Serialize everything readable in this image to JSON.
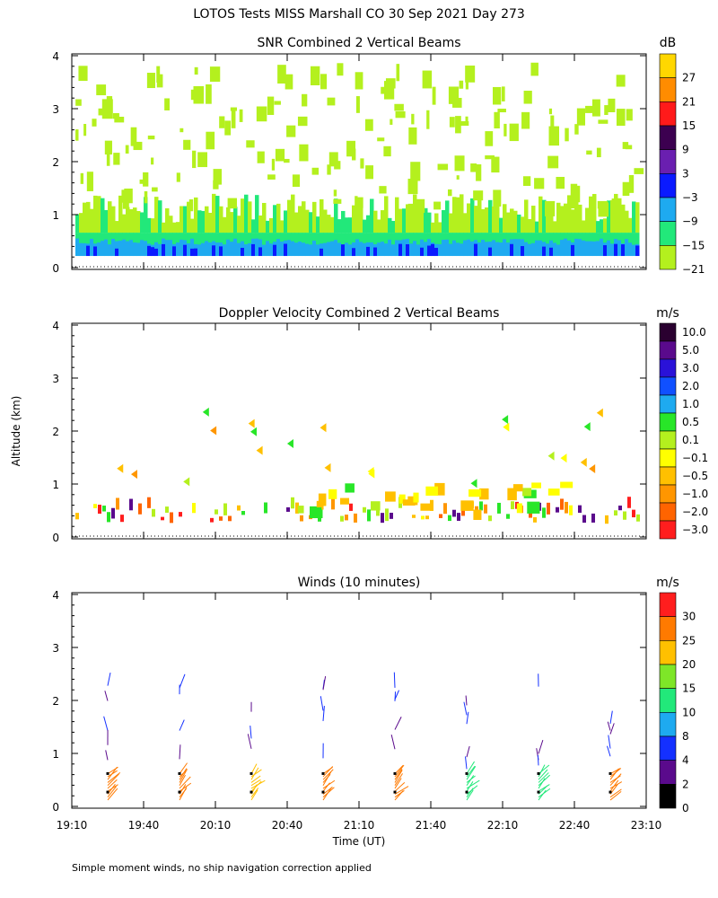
{
  "figure": {
    "title": "LOTOS Tests MISS Marshall CO  30 Sep 2021 Day 273",
    "footnote": "Simple moment winds, no ship navigation correction applied",
    "ylabel": "Altitude (km)",
    "xlabel": "Time (UT)",
    "x_ticks": [
      "19:10",
      "19:40",
      "20:10",
      "20:40",
      "21:10",
      "21:40",
      "22:10",
      "22:40",
      "23:10"
    ],
    "y_ticks": [
      "0",
      "1",
      "2",
      "3",
      "4"
    ]
  },
  "chart_data": [
    {
      "type": "heatmap",
      "title": "SNR Combined 2 Vertical Beams",
      "units": "dB",
      "xlim": [
        "19:10",
        "23:10"
      ],
      "ylim": [
        0,
        4
      ],
      "colorbar": {
        "labels": [
          "27",
          "21",
          "15",
          "9",
          "3",
          "−3",
          "−9",
          "−15",
          "−21"
        ],
        "colors": [
          "#ffd700",
          "#ff8c00",
          "#ff1a1a",
          "#3c0050",
          "#6a1fb0",
          "#0a1aff",
          "#1eaaf0",
          "#22e87a",
          "#b4f01e"
        ]
      }
    },
    {
      "type": "heatmap",
      "title": "Doppler Velocity Combined 2 Vertical Beams",
      "units": "m/s",
      "xlim": [
        "19:10",
        "23:10"
      ],
      "ylim": [
        0,
        4
      ],
      "colorbar": {
        "labels": [
          "10.0",
          "5.0",
          "3.0",
          "2.0",
          "1.0",
          "0.5",
          "0.1",
          "−0.1",
          "−0.5",
          "−1.0",
          "−2.0",
          "−3.0"
        ],
        "colors": [
          "#2a0030",
          "#5a0a8c",
          "#2a12d8",
          "#1050ff",
          "#1eaaf0",
          "#28e628",
          "#b4f01e",
          "#ffff00",
          "#ffc000",
          "#ff9600",
          "#ff6400",
          "#ff1e1e"
        ]
      }
    },
    {
      "type": "wind-barbs",
      "title": "Winds (10 minutes)",
      "units": "m/s",
      "xlim": [
        "19:10",
        "23:10"
      ],
      "ylim": [
        0,
        4
      ],
      "colorbar": {
        "labels": [
          "30",
          "25",
          "20",
          "15",
          "10",
          "8",
          "4",
          "2",
          "0"
        ],
        "colors": [
          "#ff1e1e",
          "#ff7a00",
          "#ffc000",
          "#7ee628",
          "#22e87a",
          "#1eaaf0",
          "#1430ff",
          "#5a0a8c",
          "#000000"
        ]
      },
      "profile_times": [
        "19:25",
        "19:55",
        "20:25",
        "20:55",
        "21:25",
        "21:55",
        "22:25",
        "22:55"
      ]
    }
  ]
}
